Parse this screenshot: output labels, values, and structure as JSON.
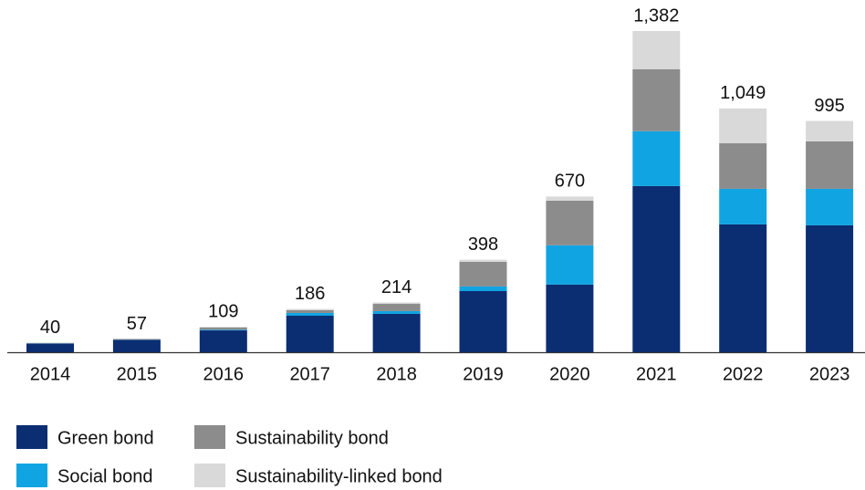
{
  "chart_data": {
    "type": "stacked-bar",
    "categories": [
      "2014",
      "2015",
      "2016",
      "2017",
      "2018",
      "2019",
      "2020",
      "2021",
      "2022",
      "2023"
    ],
    "series": [
      {
        "name": "Green bond",
        "color": "#0b2d72",
        "values": [
          37,
          53,
          94,
          157,
          165,
          263,
          291,
          715,
          550,
          546
        ]
      },
      {
        "name": "Social bond",
        "color": "#10a4e2",
        "values": [
          1,
          1,
          3,
          12,
          12,
          20,
          169,
          236,
          153,
          157
        ]
      },
      {
        "name": "Sustainability bond",
        "color": "#8c8c8c",
        "values": [
          2,
          3,
          10,
          12,
          31,
          106,
          192,
          267,
          196,
          204
        ]
      },
      {
        "name": "Sustainability-linked bond",
        "color": "#d9d9d9",
        "values": [
          0,
          0,
          2,
          5,
          6,
          9,
          18,
          164,
          150,
          88
        ]
      }
    ],
    "totals": [
      40,
      57,
      109,
      186,
      214,
      398,
      670,
      1382,
      1049,
      995
    ],
    "total_labels": [
      "40",
      "57",
      "109",
      "186",
      "214",
      "398",
      "670",
      "1,382",
      "1,049",
      "995"
    ]
  }
}
